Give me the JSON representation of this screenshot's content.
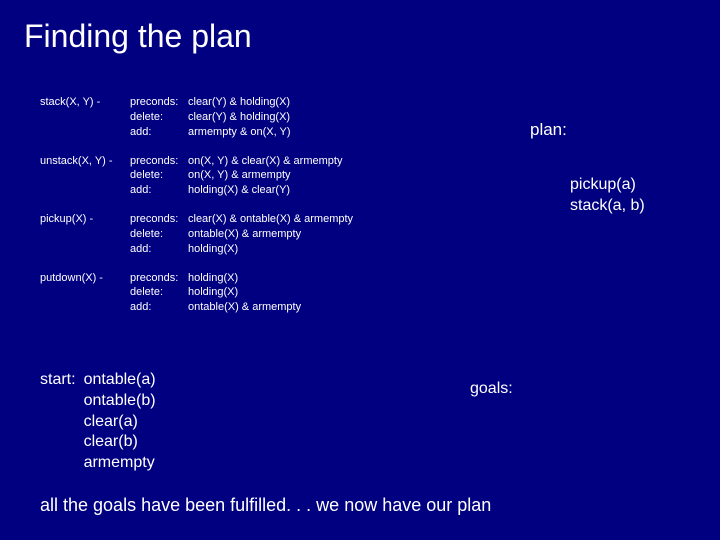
{
  "title": "Finding the plan",
  "operators": [
    {
      "name": "stack(X, Y) -",
      "rows": [
        {
          "key": "preconds:",
          "val": "clear(Y) & holding(X)"
        },
        {
          "key": "delete:",
          "val": "clear(Y) & holding(X)"
        },
        {
          "key": "add:",
          "val": "armempty & on(X, Y)"
        }
      ]
    },
    {
      "name": "unstack(X, Y) -",
      "rows": [
        {
          "key": "preconds:",
          "val": "on(X, Y) & clear(X) & armempty"
        },
        {
          "key": "delete:",
          "val": "on(X, Y) & armempty"
        },
        {
          "key": "add:",
          "val": "holding(X) & clear(Y)"
        }
      ]
    },
    {
      "name": "pickup(X) -",
      "rows": [
        {
          "key": "preconds:",
          "val": "clear(X) & ontable(X) & armempty"
        },
        {
          "key": "delete:",
          "val": "ontable(X) & armempty"
        },
        {
          "key": "add:",
          "val": "holding(X)"
        }
      ]
    },
    {
      "name": "putdown(X) -",
      "rows": [
        {
          "key": "preconds:",
          "val": "holding(X)"
        },
        {
          "key": "delete:",
          "val": "holding(X)"
        },
        {
          "key": "add:",
          "val": "ontable(X) & armempty"
        }
      ]
    }
  ],
  "plan": {
    "label": "plan:",
    "steps": [
      "pickup(a)",
      "stack(a, b)"
    ]
  },
  "start": {
    "label": "start:",
    "items": [
      "ontable(a)",
      "ontable(b)",
      "clear(a)",
      "clear(b)",
      "armempty"
    ]
  },
  "goals": {
    "label": "goals:"
  },
  "footer": "all the goals have been fulfilled. . . we now have our plan"
}
